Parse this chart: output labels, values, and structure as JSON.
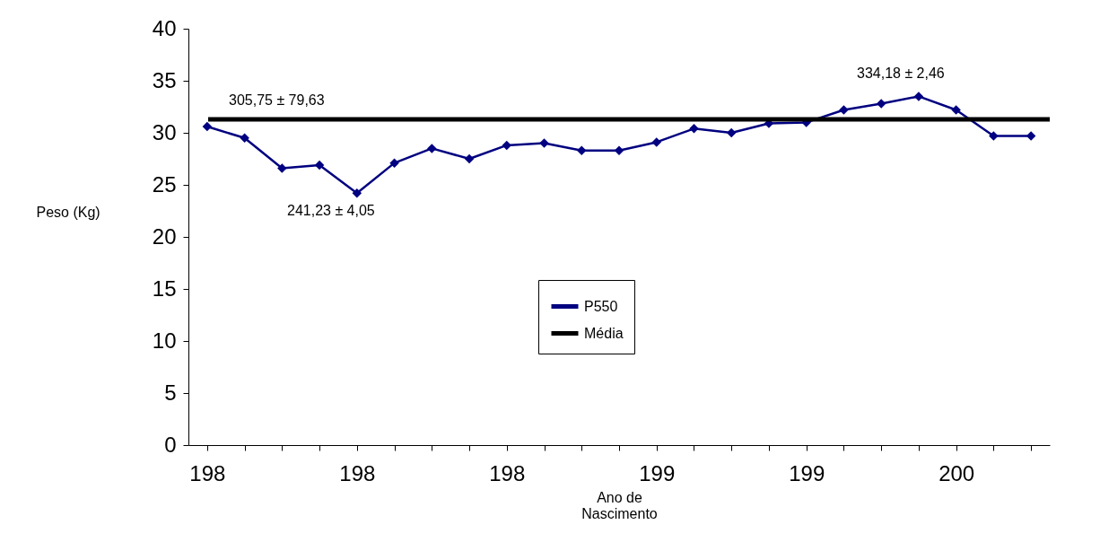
{
  "chart_data": {
    "type": "line",
    "categories": [
      "198",
      null,
      null,
      null,
      "198",
      null,
      null,
      null,
      "198",
      null,
      null,
      null,
      "199",
      null,
      null,
      null,
      "199",
      null,
      null,
      null,
      "200",
      null,
      null
    ],
    "series": [
      {
        "name": "P550",
        "color": "#000080",
        "values": [
          30.6,
          29.5,
          26.6,
          26.9,
          24.2,
          27.1,
          28.5,
          27.5,
          28.8,
          29.0,
          28.3,
          28.3,
          29.1,
          30.4,
          30.0,
          30.9,
          31.0,
          32.2,
          32.8,
          33.5,
          32.2,
          29.7,
          29.7
        ]
      }
    ],
    "ylim": [
      0,
      40
    ],
    "yticks": [
      0,
      5,
      10,
      15,
      20,
      25,
      30,
      35,
      40
    ],
    "xlabel": "Ano de Nascimento",
    "ylabel": "Peso (Kg)",
    "ref_lines": [
      {
        "axis": "y",
        "value": 31.3,
        "label": "Média",
        "color": "#000000"
      }
    ],
    "annotations": [
      "305,75 ± 79,63",
      "241,23 ± 4,05",
      "334,18 ± 2,46"
    ],
    "marker": "diamond",
    "line_style": "solid",
    "grid": false,
    "legend": "bottom"
  }
}
